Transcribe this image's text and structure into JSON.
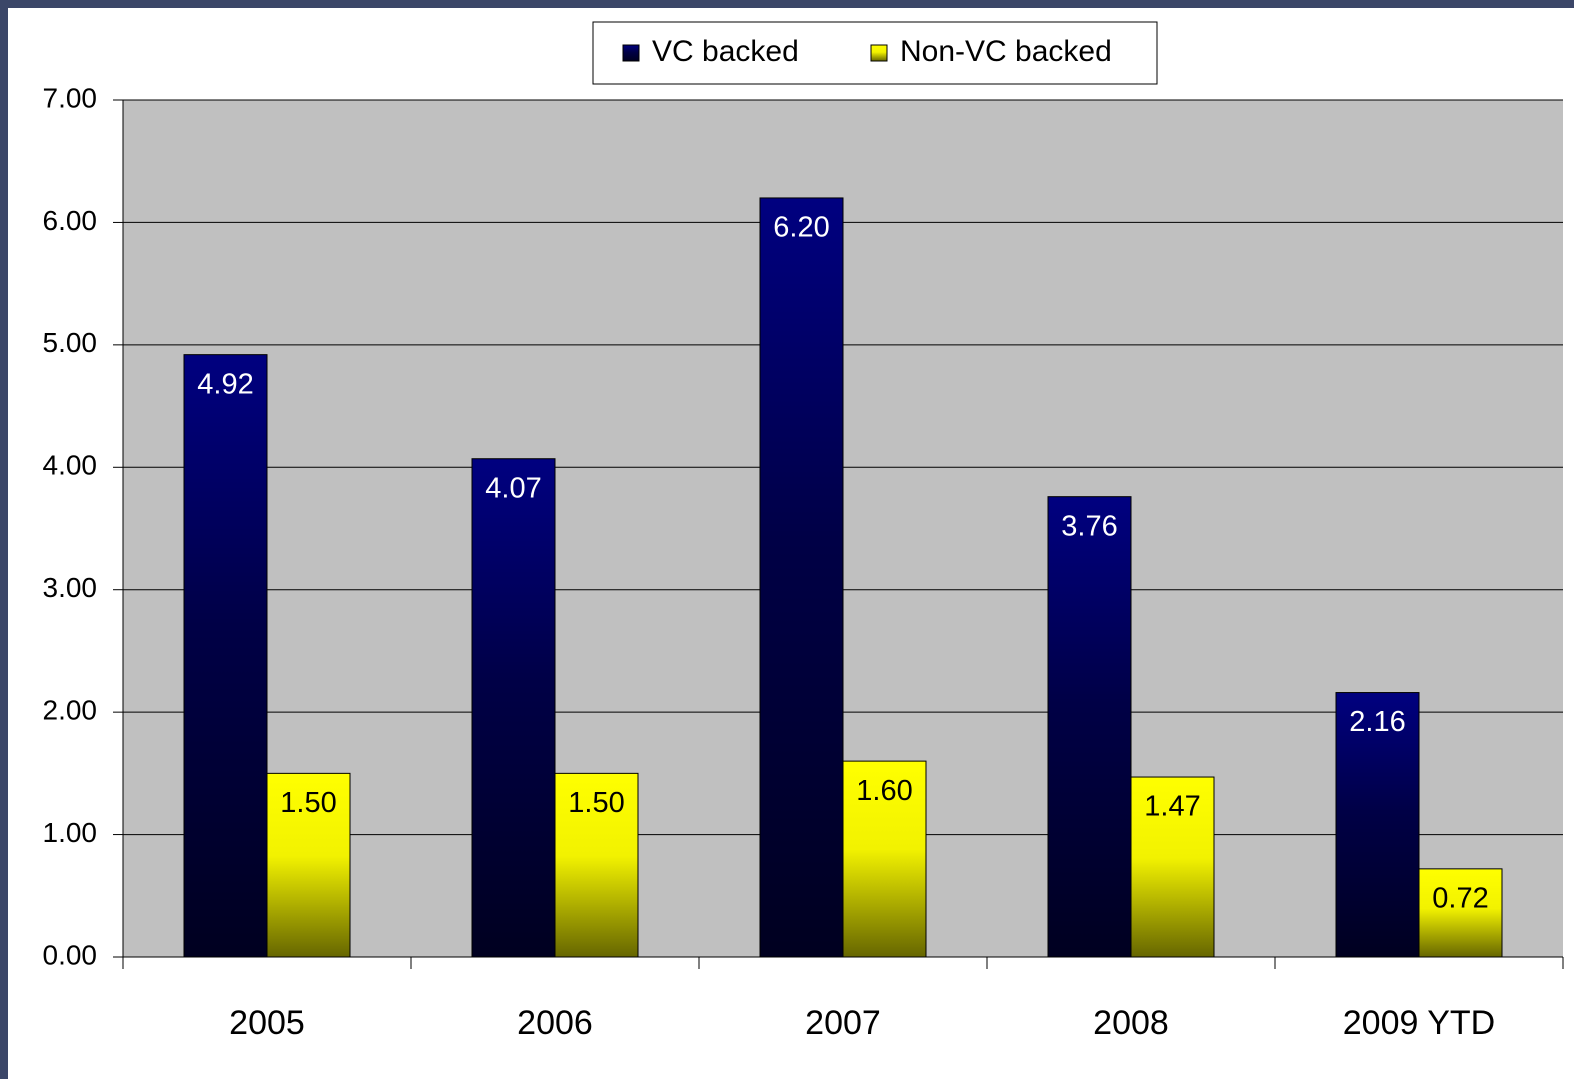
{
  "chart_data": {
    "type": "bar",
    "categories": [
      "2005",
      "2006",
      "2007",
      "2008",
      "2009 YTD"
    ],
    "series": [
      {
        "name": "VC backed",
        "color": "#000080",
        "values": [
          4.92,
          4.07,
          6.2,
          3.76,
          2.16
        ],
        "value_labels": [
          "4.92",
          "4.07",
          "6.20",
          "3.76",
          "2.16"
        ]
      },
      {
        "name": "Non-VC backed",
        "color": "#ffff00",
        "values": [
          1.5,
          1.5,
          1.6,
          1.47,
          0.72
        ],
        "value_labels": [
          "1.50",
          "1.50",
          "1.60",
          "1.47",
          "0.72"
        ]
      }
    ],
    "ylim": [
      0,
      7
    ],
    "yticks": [
      {
        "value": 0,
        "label": "0.00"
      },
      {
        "value": 1,
        "label": "1.00"
      },
      {
        "value": 2,
        "label": "2.00"
      },
      {
        "value": 3,
        "label": "3.00"
      },
      {
        "value": 4,
        "label": "4.00"
      },
      {
        "value": 5,
        "label": "5.00"
      },
      {
        "value": 6,
        "label": "6.00"
      },
      {
        "value": 7,
        "label": "7.00"
      }
    ],
    "grid": true,
    "legend": "top"
  }
}
